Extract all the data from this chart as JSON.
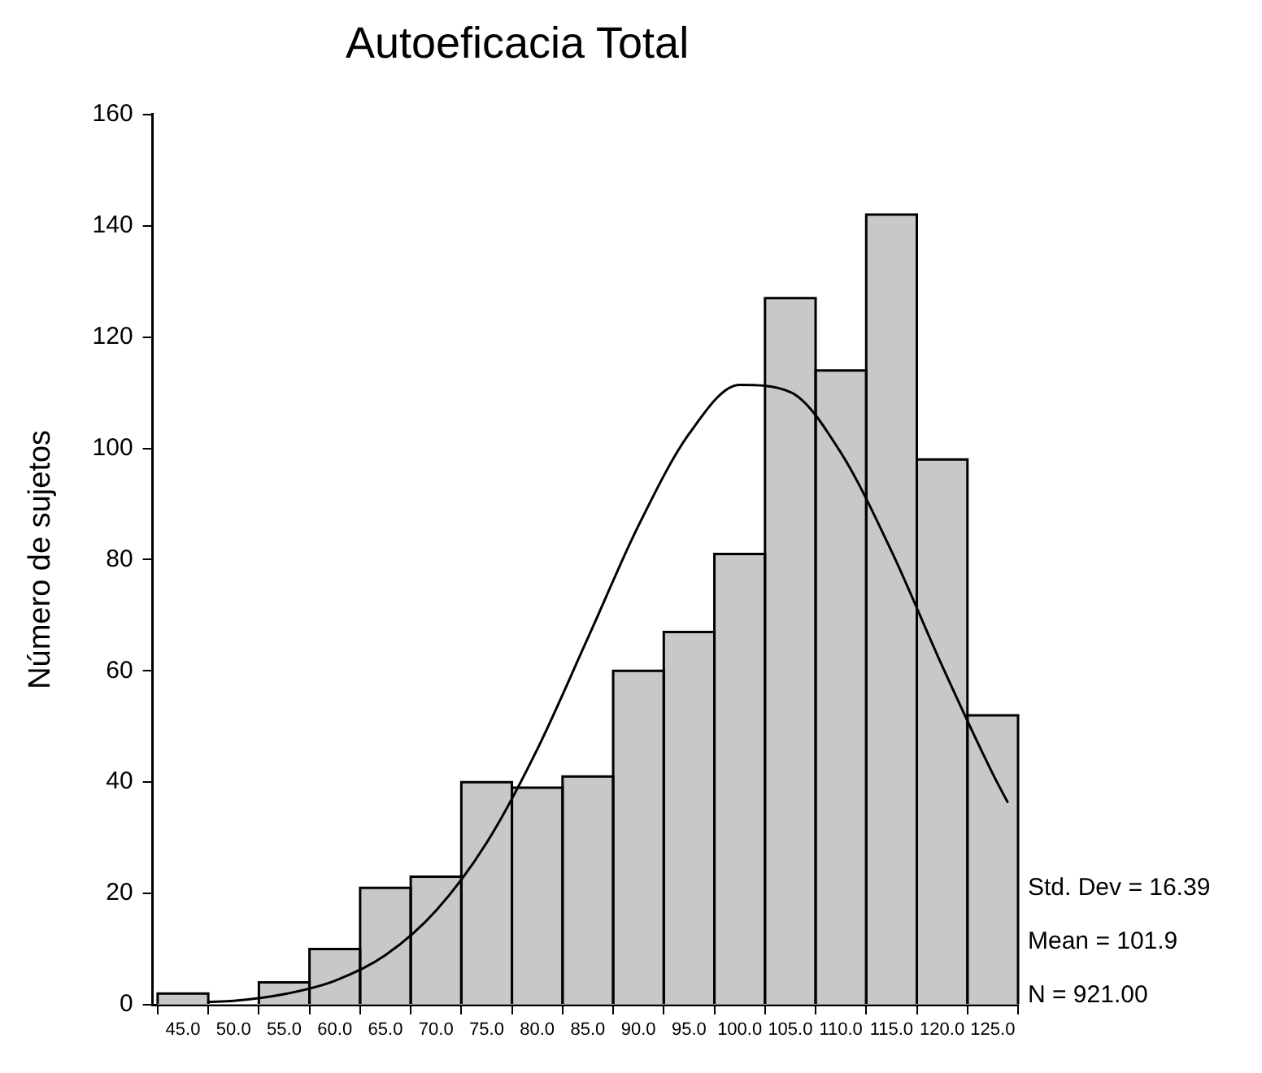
{
  "chart_data": {
    "type": "histogram",
    "title": "Autoeficacia Total",
    "ylabel": "Número de sujetos",
    "bins": [
      42.5,
      47.5,
      52.5,
      57.5,
      62.5,
      67.5,
      72.5,
      77.5,
      82.5,
      87.5,
      92.5,
      97.5,
      102.5,
      107.5,
      112.5,
      117.5,
      122.5,
      127.5
    ],
    "values": [
      2,
      0,
      4,
      10,
      21,
      23,
      40,
      39,
      41,
      60,
      67,
      81,
      127,
      114,
      142,
      98,
      52
    ],
    "color": "#c8c8c8",
    "series": [
      {
        "type": "line",
        "color": "#000000",
        "x": [
          47.5,
          50,
          55,
          60,
          65,
          70,
          75,
          80,
          85,
          90,
          95,
          100,
          105,
          110,
          115,
          120,
          125,
          126.5
        ],
        "values": [
          0.5,
          0.7,
          1.9,
          4.3,
          8.9,
          16.9,
          29.1,
          45.9,
          65.9,
          86.1,
          102.6,
          111.4,
          110.1,
          99.2,
          81.5,
          60.9,
          41.5,
          36.3
        ]
      }
    ],
    "xlim": [
      42,
      127.5
    ],
    "xticks": [
      {
        "value": 45,
        "label": "45.0"
      },
      {
        "value": 50,
        "label": "50.0"
      },
      {
        "value": 55,
        "label": "55.0"
      },
      {
        "value": 60,
        "label": "60.0"
      },
      {
        "value": 65,
        "label": "65.0"
      },
      {
        "value": 70,
        "label": "70.0"
      },
      {
        "value": 75,
        "label": "75.0"
      },
      {
        "value": 80,
        "label": "80.0"
      },
      {
        "value": 85,
        "label": "85.0"
      },
      {
        "value": 90,
        "label": "90.0"
      },
      {
        "value": 95,
        "label": "95.0"
      },
      {
        "value": 100,
        "label": "100.0"
      },
      {
        "value": 105,
        "label": "105.0"
      },
      {
        "value": 110,
        "label": "110.0"
      },
      {
        "value": 115,
        "label": "115.0"
      },
      {
        "value": 120,
        "label": "120.0"
      },
      {
        "value": 125,
        "label": "125.0"
      }
    ],
    "ylim": [
      0,
      160
    ],
    "yticks": [
      0,
      20,
      40,
      60,
      80,
      100,
      120,
      140,
      160
    ],
    "grid": false,
    "legend": false,
    "marker": "none",
    "line_style": "solid",
    "annotations": [
      "Std. Dev = 16.39",
      "Mean = 101.9",
      "N = 921.00"
    ]
  }
}
